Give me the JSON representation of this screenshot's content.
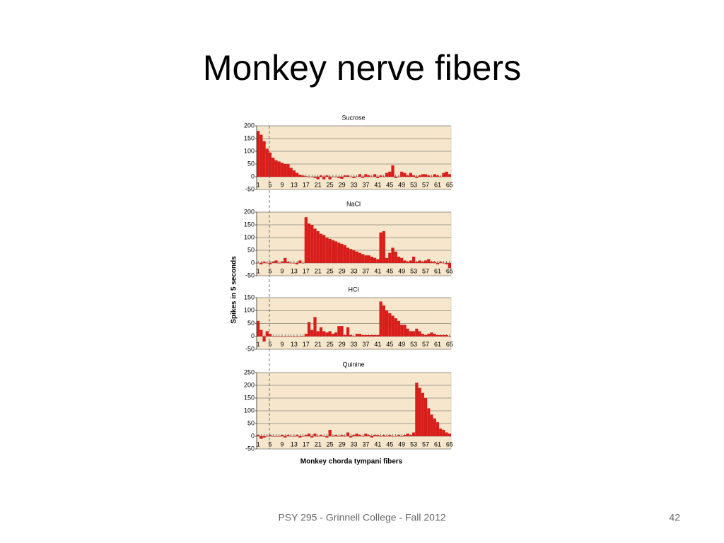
{
  "slide": {
    "title": "Monkey nerve fibers",
    "y_axis_label": "Spikes in 5 seconds",
    "x_axis_label": "Monkey chorda tympani fibers",
    "footer": "PSY 295 - Grinnell College - Fall 2012",
    "page_number": "42"
  },
  "chart_data": [
    {
      "type": "bar",
      "title": "Sucrose",
      "color": "#d81e1a",
      "grid": true,
      "ylim": [
        -50,
        200
      ],
      "yticks": [
        -50,
        0,
        50,
        100,
        150,
        200
      ],
      "categories": [
        "1",
        null,
        null,
        null,
        "5",
        null,
        null,
        null,
        "9",
        null,
        null,
        null,
        "13",
        null,
        null,
        null,
        "17",
        null,
        null,
        null,
        "21",
        null,
        null,
        null,
        "25",
        null,
        null,
        null,
        "29",
        null,
        null,
        null,
        "33",
        null,
        null,
        null,
        "37",
        null,
        null,
        null,
        "41",
        null,
        null,
        null,
        "45",
        null,
        null,
        null,
        "49",
        null,
        null,
        null,
        "53",
        null,
        null,
        null,
        "57",
        null,
        null,
        null,
        "61",
        null,
        null,
        null,
        "65"
      ],
      "values": [
        180,
        165,
        140,
        110,
        95,
        75,
        65,
        60,
        55,
        50,
        50,
        35,
        25,
        15,
        8,
        5,
        2,
        0,
        0,
        -5,
        -10,
        5,
        -10,
        5,
        -10,
        0,
        0,
        -5,
        -8,
        5,
        5,
        0,
        -5,
        0,
        10,
        -5,
        10,
        5,
        0,
        10,
        -5,
        5,
        0,
        15,
        20,
        45,
        -5,
        0,
        20,
        15,
        5,
        15,
        5,
        -5,
        5,
        10,
        10,
        5,
        0,
        10,
        5,
        0,
        15,
        20,
        10
      ]
    },
    {
      "type": "bar",
      "title": "NaCl",
      "color": "#d81e1a",
      "grid": true,
      "ylim": [
        -50,
        200
      ],
      "yticks": [
        -50,
        0,
        50,
        100,
        150,
        200
      ],
      "categories": [
        "1",
        null,
        null,
        null,
        "5",
        null,
        null,
        null,
        "9",
        null,
        null,
        null,
        "13",
        null,
        null,
        null,
        "17",
        null,
        null,
        null,
        "21",
        null,
        null,
        null,
        "25",
        null,
        null,
        null,
        "29",
        null,
        null,
        null,
        "33",
        null,
        null,
        null,
        "37",
        null,
        null,
        null,
        "41",
        null,
        null,
        null,
        "45",
        null,
        null,
        null,
        "49",
        null,
        null,
        null,
        "53",
        null,
        null,
        null,
        "57",
        null,
        null,
        null,
        "61",
        null,
        null,
        null,
        "65"
      ],
      "values": [
        0,
        -5,
        5,
        0,
        -5,
        5,
        10,
        0,
        5,
        20,
        5,
        0,
        0,
        -5,
        10,
        0,
        180,
        155,
        150,
        135,
        125,
        115,
        110,
        100,
        95,
        90,
        85,
        80,
        75,
        70,
        60,
        55,
        50,
        45,
        40,
        35,
        30,
        30,
        25,
        20,
        15,
        120,
        125,
        20,
        40,
        60,
        45,
        25,
        20,
        10,
        5,
        10,
        25,
        5,
        10,
        5,
        10,
        15,
        5,
        5,
        -5,
        5,
        0,
        -5,
        -20
      ]
    },
    {
      "type": "bar",
      "title": "HCl",
      "color": "#d81e1a",
      "grid": true,
      "ylim": [
        -50,
        150
      ],
      "yticks": [
        -50,
        0,
        50,
        100,
        150
      ],
      "categories": [
        "1",
        null,
        null,
        null,
        "5",
        null,
        null,
        null,
        "9",
        null,
        null,
        null,
        "13",
        null,
        null,
        null,
        "17",
        null,
        null,
        null,
        "21",
        null,
        null,
        null,
        "25",
        null,
        null,
        null,
        "29",
        null,
        null,
        null,
        "33",
        null,
        null,
        null,
        "37",
        null,
        null,
        null,
        "41",
        null,
        null,
        null,
        "45",
        null,
        null,
        null,
        "49",
        null,
        null,
        null,
        "53",
        null,
        null,
        null,
        "57",
        null,
        null,
        null,
        "61",
        null,
        null,
        null,
        "65"
      ],
      "values": [
        60,
        25,
        -20,
        20,
        10,
        0,
        0,
        0,
        0,
        0,
        0,
        0,
        0,
        0,
        0,
        0,
        10,
        55,
        25,
        75,
        20,
        35,
        20,
        15,
        20,
        10,
        15,
        40,
        40,
        5,
        35,
        5,
        0,
        10,
        10,
        5,
        5,
        5,
        5,
        5,
        5,
        135,
        120,
        100,
        90,
        80,
        70,
        60,
        45,
        45,
        30,
        20,
        20,
        30,
        20,
        10,
        5,
        10,
        15,
        10,
        5,
        5,
        5,
        5,
        0
      ]
    },
    {
      "type": "bar",
      "title": "Quinine",
      "color": "#d81e1a",
      "grid": true,
      "ylim": [
        -50,
        250
      ],
      "yticks": [
        -50,
        0,
        50,
        100,
        150,
        200,
        250
      ],
      "categories": [
        "1",
        null,
        null,
        null,
        "5",
        null,
        null,
        null,
        "9",
        null,
        null,
        null,
        "13",
        null,
        null,
        null,
        "17",
        null,
        null,
        null,
        "21",
        null,
        null,
        null,
        "25",
        null,
        null,
        null,
        "29",
        null,
        null,
        null,
        "33",
        null,
        null,
        null,
        "37",
        null,
        null,
        null,
        "41",
        null,
        null,
        null,
        "45",
        null,
        null,
        null,
        "49",
        null,
        null,
        null,
        "53",
        null,
        null,
        null,
        "57",
        null,
        null,
        null,
        "61",
        null,
        null,
        null,
        "65"
      ],
      "values": [
        5,
        -10,
        -5,
        0,
        5,
        0,
        0,
        0,
        5,
        -5,
        5,
        0,
        0,
        5,
        -5,
        0,
        5,
        10,
        -5,
        10,
        0,
        5,
        0,
        -5,
        25,
        0,
        5,
        0,
        5,
        0,
        15,
        -5,
        5,
        10,
        5,
        0,
        10,
        5,
        -5,
        5,
        5,
        0,
        5,
        0,
        5,
        0,
        0,
        5,
        0,
        5,
        10,
        5,
        15,
        210,
        190,
        170,
        150,
        110,
        85,
        70,
        55,
        30,
        25,
        15,
        10
      ]
    }
  ]
}
